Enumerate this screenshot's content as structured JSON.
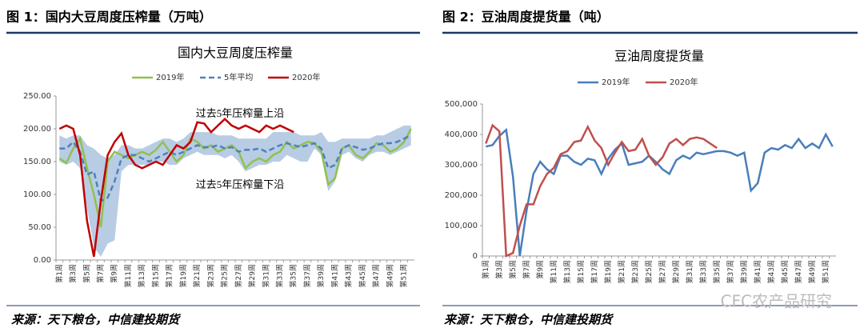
{
  "panels": [
    {
      "heading": "图 1：国内大豆周度压榨量（万吨）",
      "source": "来源：天下粮仓，中信建投期货"
    },
    {
      "heading": "图 2：豆油周度提货量（吨）",
      "source": "来源：天下粮仓，中信建投期货"
    }
  ],
  "watermark": "CFC农产品研究",
  "chart_data": [
    {
      "type": "line",
      "title": "国内大豆周度压榨量",
      "categories": [
        "第1周",
        null,
        "第3周",
        null,
        "第5周",
        null,
        "第7周",
        null,
        "第9周",
        null,
        "第11周",
        null,
        "第13周",
        null,
        "第15周",
        null,
        "第17周",
        null,
        "第19周",
        null,
        "第21周",
        null,
        "第23周",
        null,
        "第25周",
        null,
        "第27周",
        null,
        "第29周",
        null,
        "第31周",
        null,
        "第33周",
        null,
        "第35周",
        null,
        "第37周",
        null,
        "第39周",
        null,
        "第41周",
        null,
        "第43周",
        null,
        "第45周",
        null,
        "第47周",
        null,
        "第49周",
        null,
        "第51周",
        null
      ],
      "band": {
        "color": "#b8cce4",
        "upper": [
          190,
          185,
          190,
          190,
          175,
          170,
          160,
          155,
          160,
          175,
          175,
          170,
          170,
          175,
          180,
          185,
          185,
          180,
          185,
          195,
          195,
          195,
          195,
          190,
          190,
          190,
          185,
          185,
          185,
          185,
          185,
          195,
          195,
          195,
          195,
          190,
          190,
          190,
          195,
          180,
          180,
          185,
          185,
          185,
          185,
          185,
          190,
          190,
          195,
          200,
          205,
          205
        ],
        "lower": [
          150,
          145,
          150,
          140,
          80,
          20,
          5,
          25,
          30,
          135,
          145,
          145,
          145,
          145,
          150,
          150,
          145,
          145,
          155,
          160,
          165,
          160,
          160,
          160,
          155,
          160,
          150,
          135,
          140,
          145,
          145,
          150,
          150,
          160,
          155,
          150,
          150,
          170,
          160,
          105,
          120,
          160,
          165,
          155,
          150,
          160,
          165,
          165,
          160,
          165,
          170,
          175
        ]
      },
      "series": [
        {
          "name": "2019年",
          "color": "#92c050",
          "values": [
            155,
            148,
            170,
            185,
            140,
            100,
            50,
            150,
            165,
            160,
            155,
            160,
            165,
            160,
            168,
            180,
            165,
            150,
            160,
            185,
            180,
            170,
            175,
            165,
            170,
            175,
            165,
            140,
            150,
            155,
            150,
            160,
            165,
            180,
            170,
            175,
            180,
            178,
            165,
            115,
            125,
            170,
            175,
            160,
            155,
            165,
            178,
            175,
            165,
            170,
            180,
            200
          ]
        },
        {
          "name": "5年平均",
          "color": "#4f81bd",
          "dashed": true,
          "values": [
            170,
            170,
            180,
            165,
            130,
            135,
            90,
            95,
            120,
            155,
            160,
            160,
            155,
            150,
            155,
            160,
            165,
            160,
            165,
            170,
            175,
            172,
            172,
            175,
            170,
            172,
            165,
            168,
            168,
            170,
            165,
            170,
            175,
            178,
            175,
            172,
            175,
            178,
            170,
            140,
            145,
            170,
            175,
            172,
            168,
            170,
            175,
            178,
            178,
            180,
            185,
            190
          ]
        },
        {
          "name": "2020年",
          "color": "#c00000",
          "values": [
            200,
            205,
            200,
            160,
            60,
            5,
            90,
            160,
            180,
            193,
            160,
            145,
            140,
            145,
            150,
            145,
            160,
            175,
            170,
            180,
            210,
            208,
            195,
            205,
            215,
            205,
            200,
            205,
            200,
            195,
            205,
            200,
            205,
            200,
            195,
            null,
            null,
            null,
            null,
            null,
            null,
            null,
            null,
            null,
            null,
            null,
            null,
            null,
            null,
            null,
            null,
            null
          ]
        }
      ],
      "ylim": [
        0,
        250
      ],
      "yticks": [
        {
          "value": 0,
          "label": "0.00"
        },
        {
          "value": 50,
          "label": "50.00"
        },
        {
          "value": 100,
          "label": "100.00"
        },
        {
          "value": 150,
          "label": "150.00"
        },
        {
          "value": 200,
          "label": "200.00"
        },
        {
          "value": 250,
          "label": "250.00"
        }
      ],
      "annotations": [
        "过去5年压榨量上沿",
        "过去5年压榨量下沿"
      ],
      "legend": "top"
    },
    {
      "type": "line",
      "title": "豆油周度提货量",
      "categories": [
        "第1周",
        null,
        "第3周",
        null,
        "第5周",
        null,
        "第7周",
        null,
        "第9周",
        null,
        "第11周",
        null,
        "第13周",
        null,
        "第15周",
        null,
        "第17周",
        null,
        "第19周",
        null,
        "第21周",
        null,
        "第23周",
        null,
        "第25周",
        null,
        "第27周",
        null,
        "第29周",
        null,
        "第31周",
        null,
        "第33周",
        null,
        "第35周",
        null,
        "第37周",
        null,
        "第39周",
        null,
        "第41周",
        null,
        "第43周",
        null,
        "第45周",
        null,
        "第47周",
        null,
        "第49周",
        null,
        "第51周",
        null
      ],
      "series": [
        {
          "name": "2019年",
          "color": "#4a7ebb",
          "values": [
            360000,
            365000,
            395000,
            415000,
            260000,
            0,
            150000,
            270000,
            310000,
            285000,
            270000,
            330000,
            330000,
            310000,
            300000,
            320000,
            315000,
            270000,
            320000,
            350000,
            370000,
            300000,
            305000,
            310000,
            330000,
            310000,
            285000,
            270000,
            315000,
            330000,
            320000,
            340000,
            335000,
            340000,
            345000,
            345000,
            340000,
            330000,
            340000,
            215000,
            240000,
            340000,
            355000,
            350000,
            365000,
            355000,
            385000,
            355000,
            370000,
            355000,
            400000,
            360000
          ]
        },
        {
          "name": "2020年",
          "color": "#c0504d",
          "values": [
            370000,
            430000,
            410000,
            0,
            10000,
            100000,
            170000,
            170000,
            230000,
            270000,
            290000,
            335000,
            345000,
            375000,
            380000,
            425000,
            380000,
            355000,
            300000,
            340000,
            375000,
            345000,
            350000,
            385000,
            330000,
            300000,
            325000,
            370000,
            385000,
            365000,
            385000,
            390000,
            385000,
            370000,
            355000,
            null,
            null,
            null,
            null,
            null,
            null,
            null,
            null,
            null,
            null,
            null,
            null,
            null,
            null,
            null,
            null,
            null
          ]
        }
      ],
      "ylim": [
        0,
        500000
      ],
      "yticks": [
        {
          "value": 0,
          "label": "0"
        },
        {
          "value": 100000,
          "label": "100,000"
        },
        {
          "value": 200000,
          "label": "200,000"
        },
        {
          "value": 300000,
          "label": "300,000"
        },
        {
          "value": 400000,
          "label": "400,000"
        },
        {
          "value": 500000,
          "label": "500,000"
        }
      ],
      "legend": "top"
    }
  ]
}
